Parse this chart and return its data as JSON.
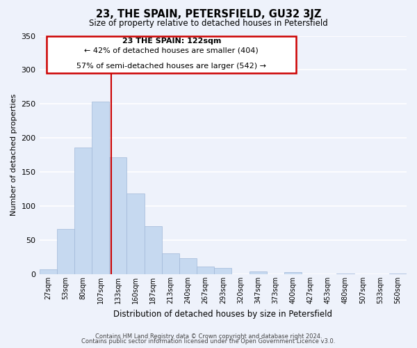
{
  "title": "23, THE SPAIN, PETERSFIELD, GU32 3JZ",
  "subtitle": "Size of property relative to detached houses in Petersfield",
  "xlabel": "Distribution of detached houses by size in Petersfield",
  "ylabel": "Number of detached properties",
  "bar_labels": [
    "27sqm",
    "53sqm",
    "80sqm",
    "107sqm",
    "133sqm",
    "160sqm",
    "187sqm",
    "213sqm",
    "240sqm",
    "267sqm",
    "293sqm",
    "320sqm",
    "347sqm",
    "373sqm",
    "400sqm",
    "427sqm",
    "453sqm",
    "480sqm",
    "507sqm",
    "533sqm",
    "560sqm"
  ],
  "bar_values": [
    7,
    66,
    186,
    253,
    172,
    119,
    71,
    31,
    24,
    11,
    9,
    0,
    4,
    0,
    3,
    0,
    0,
    1,
    0,
    0,
    1
  ],
  "bar_color": "#c6d9f0",
  "bar_edge_color": "#a0b8d8",
  "annotation_lines": [
    "23 THE SPAIN: 122sqm",
    "← 42% of detached houses are smaller (404)",
    "57% of semi-detached houses are larger (542) →"
  ],
  "ylim": [
    0,
    350
  ],
  "yticks": [
    0,
    50,
    100,
    150,
    200,
    250,
    300,
    350
  ],
  "footer_line1": "Contains HM Land Registry data © Crown copyright and database right 2024.",
  "footer_line2": "Contains public sector information licensed under the Open Government Licence v3.0.",
  "red_line_x": 3.6,
  "background_color": "#eef2fb",
  "grid_color": "#ffffff",
  "ann_box_color": "#cc0000",
  "ann_box_facecolor": "#ffffff"
}
